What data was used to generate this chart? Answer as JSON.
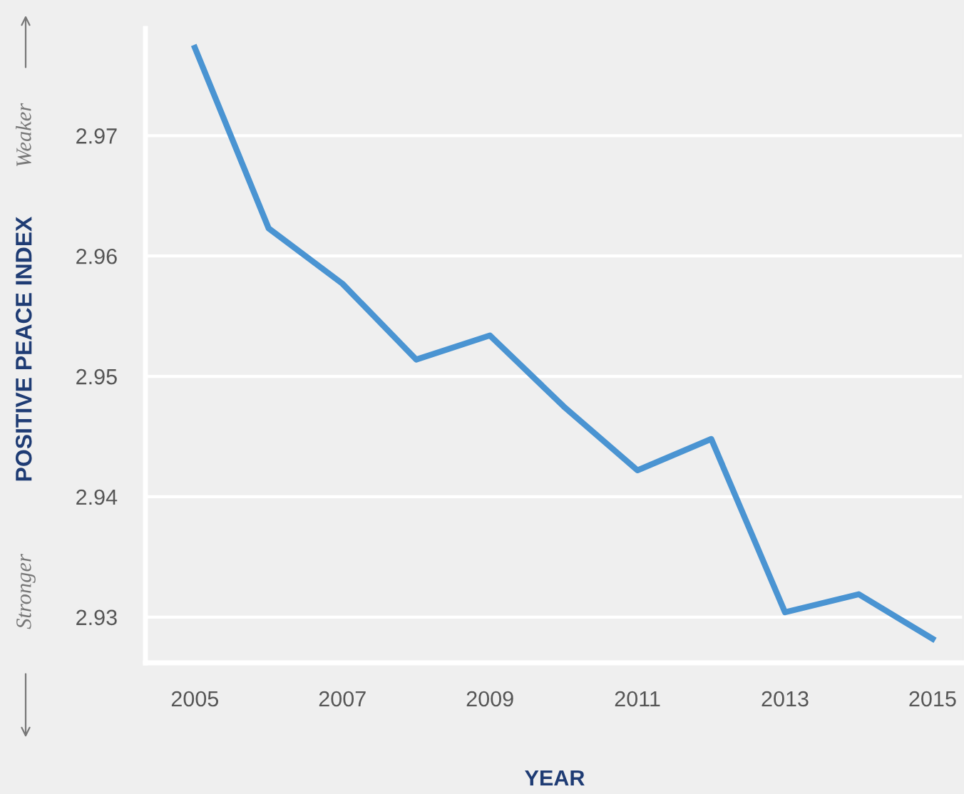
{
  "chart_data": {
    "type": "line",
    "xlabel": "YEAR",
    "ylabel": "POSITIVE PEACE INDEX",
    "annotations": [
      "Weaker",
      "Stronger"
    ],
    "x": [
      2005,
      2006,
      2007,
      2008,
      2009,
      2010,
      2011,
      2012,
      2013,
      2014,
      2015
    ],
    "series": [
      {
        "color": "#4a94d2",
        "values": [
          2.9773,
          2.9623,
          2.9577,
          2.9514,
          2.9534,
          2.9475,
          2.9422,
          2.9448,
          2.9304,
          2.9319,
          2.9282
        ]
      }
    ],
    "xlim": [
      2004.33,
      2015.4
    ],
    "ylim": [
      2.9262,
      2.9789
    ],
    "xticks": [
      2005,
      2007,
      2009,
      2011,
      2013,
      2015
    ],
    "yticks": [
      2.93,
      2.94,
      2.95,
      2.96,
      2.97
    ],
    "grid": "y",
    "legend": false,
    "marker": "none",
    "line_style": "solid"
  }
}
